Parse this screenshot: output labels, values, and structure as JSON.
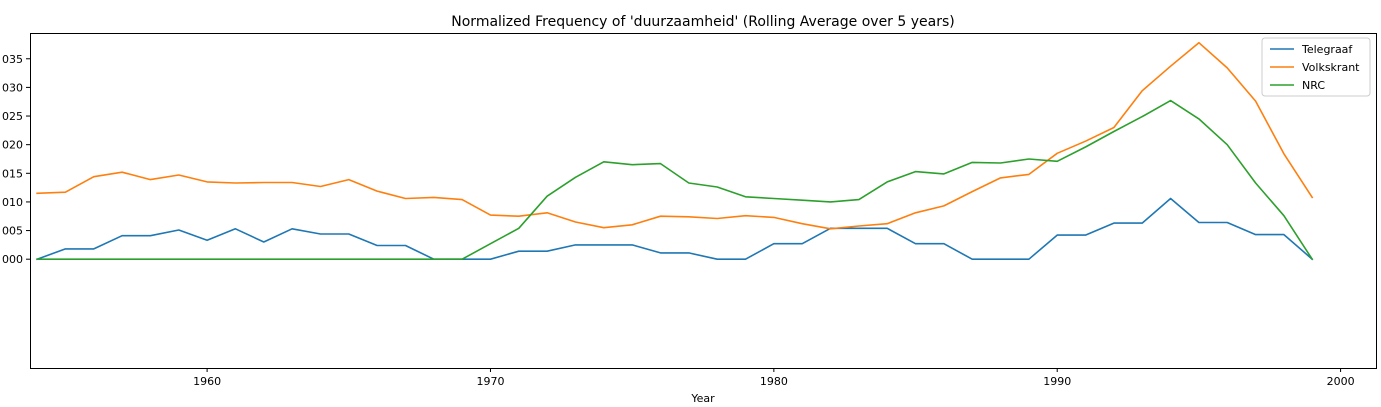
{
  "chart_data": {
    "type": "line",
    "title": "Normalized Frequency of 'duurzaamheid' (Rolling Average over 5 years)",
    "xlabel": "Year",
    "ylabel": "",
    "xlim": [
      1953.75,
      2001.25
    ],
    "ylim": [
      -0.0019,
      0.00395
    ],
    "xticks": [
      1960,
      1970,
      1980,
      1990,
      2000
    ],
    "xtick_labels": [
      "1960",
      "1970",
      "1980",
      "1990",
      "2000"
    ],
    "yticks": [
      0.0,
      0.0005,
      0.001,
      0.0015,
      0.002,
      0.0025,
      0.003,
      0.0035
    ],
    "ytick_labels": [
      "000",
      "005",
      "010",
      "015",
      "020",
      "025",
      "030",
      "035"
    ],
    "legend_position": "top-right",
    "x": [
      1954,
      1955,
      1956,
      1957,
      1958,
      1959,
      1960,
      1961,
      1962,
      1963,
      1964,
      1965,
      1966,
      1967,
      1968,
      1969,
      1970,
      1971,
      1972,
      1973,
      1974,
      1975,
      1976,
      1977,
      1978,
      1979,
      1980,
      1981,
      1982,
      1983,
      1984,
      1985,
      1986,
      1987,
      1988,
      1989,
      1990,
      1991,
      1992,
      1993,
      1994,
      1995,
      1996,
      1997,
      1998,
      1999
    ],
    "series": [
      {
        "name": "Telegraaf",
        "color": "#1f77b4",
        "values": [
          0.0,
          0.00018,
          0.00018,
          0.00041,
          0.00041,
          0.00051,
          0.00033,
          0.00053,
          0.0003,
          0.00053,
          0.00044,
          0.00044,
          0.00024,
          0.00024,
          0.0,
          0.0,
          0.0,
          0.00014,
          0.00014,
          0.00025,
          0.00025,
          0.00025,
          0.00011,
          0.00011,
          0.0,
          0.0,
          0.00027,
          0.00027,
          0.00054,
          0.00054,
          0.00054,
          0.00027,
          0.00027,
          0.0,
          0.0,
          0.0,
          0.00042,
          0.00042,
          0.00063,
          0.00063,
          0.00106,
          0.00064,
          0.00064,
          0.00043,
          0.00043,
          0.0
        ]
      },
      {
        "name": "Volkskrant",
        "color": "#ff7f0e",
        "values": [
          0.00115,
          0.00117,
          0.00144,
          0.00152,
          0.00139,
          0.00147,
          0.00135,
          0.00133,
          0.00134,
          0.00134,
          0.00127,
          0.00139,
          0.00119,
          0.00106,
          0.00108,
          0.00104,
          0.00077,
          0.00075,
          0.00081,
          0.00065,
          0.00055,
          0.0006,
          0.00075,
          0.00074,
          0.00071,
          0.00076,
          0.00073,
          0.00062,
          0.00053,
          0.00058,
          0.00062,
          0.00081,
          0.00093,
          0.00118,
          0.00142,
          0.00148,
          0.00185,
          0.00206,
          0.0023,
          0.00294,
          0.00337,
          0.00378,
          0.00334,
          0.00276,
          0.00184,
          0.00108
        ]
      },
      {
        "name": "NRC",
        "color": "#2ca02c",
        "values": [
          0.0,
          0.0,
          0.0,
          0.0,
          0.0,
          0.0,
          0.0,
          0.0,
          0.0,
          0.0,
          0.0,
          0.0,
          0.0,
          0.0,
          0.0,
          0.0,
          0.00027,
          0.00054,
          0.0011,
          0.00143,
          0.0017,
          0.00165,
          0.00167,
          0.00133,
          0.00126,
          0.00109,
          0.00106,
          0.00103,
          0.001,
          0.00104,
          0.00135,
          0.00153,
          0.00149,
          0.00169,
          0.00168,
          0.00175,
          0.00171,
          0.00196,
          0.00223,
          0.00249,
          0.00277,
          0.00245,
          0.002,
          0.00133,
          0.00076,
          0.0
        ]
      }
    ]
  }
}
